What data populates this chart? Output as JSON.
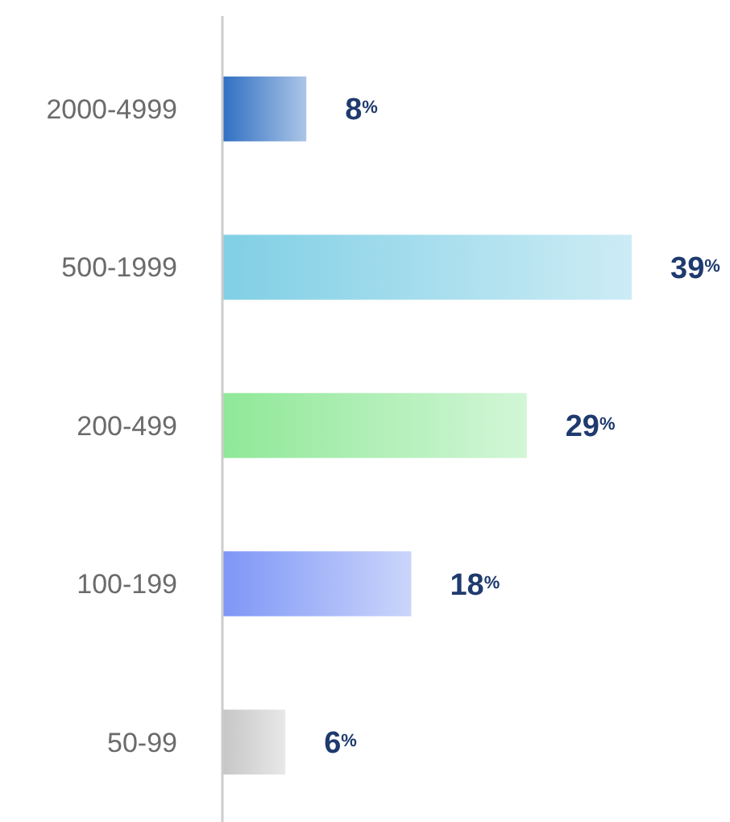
{
  "chart_data": {
    "type": "bar",
    "orientation": "horizontal",
    "categories": [
      "2000-4999",
      "500-1999",
      "200-499",
      "100-199",
      "50-99"
    ],
    "values": [
      8,
      39,
      29,
      18,
      6
    ],
    "colors": [
      "#2f6fc2",
      "#80cfe5",
      "#8fe898",
      "#7e96f6",
      "#c6c6c6"
    ],
    "value_labels": [
      "8$^{%}$",
      "39$^{%}$",
      "29$^{%}$",
      "18$^{%}$",
      "6$^{%}$"
    ]
  }
}
